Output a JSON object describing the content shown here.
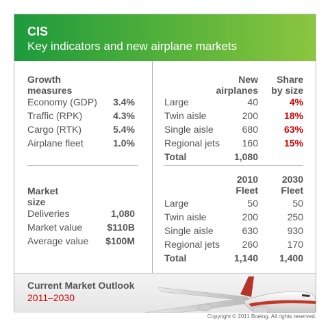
{
  "header": {
    "title": "CIS",
    "subtitle": "Key indicators and new airplane markets"
  },
  "growth": {
    "heading_line1": "Growth",
    "heading_line2": "measures",
    "rows": [
      {
        "label": "Economy (GDP)",
        "value": "3.4%"
      },
      {
        "label": "Traffic (RPK)",
        "value": "4.3%"
      },
      {
        "label": "Cargo (RTK)",
        "value": "5.4%"
      },
      {
        "label": "Airplane fleet",
        "value": "1.0%"
      }
    ]
  },
  "market": {
    "heading_line1": "Market",
    "heading_line2": "size",
    "rows": [
      {
        "label": "Deliveries",
        "value": "1,080"
      },
      {
        "label": "Market value",
        "value": "$110B"
      },
      {
        "label": "Average value",
        "value": "$100M"
      }
    ]
  },
  "new_airplanes": {
    "col1_line1": "New",
    "col1_line2": "airplanes",
    "col2_line1": "Share",
    "col2_line2": "by size",
    "rows": [
      {
        "label": "Large",
        "count": "40",
        "share": "4%"
      },
      {
        "label": "Twin aisle",
        "count": "200",
        "share": "18%"
      },
      {
        "label": "Single aisle",
        "count": "680",
        "share": "63%"
      },
      {
        "label": "Regional jets",
        "count": "160",
        "share": "15%"
      }
    ],
    "total_label": "Total",
    "total_value": "1,080"
  },
  "fleet": {
    "col1_line1": "2010",
    "col1_line2": "Fleet",
    "col2_line1": "2030",
    "col2_line2": "Fleet",
    "rows": [
      {
        "label": "Large",
        "y2010": "50",
        "y2030": "50"
      },
      {
        "label": "Twin aisle",
        "y2010": "200",
        "y2030": "250"
      },
      {
        "label": "Single aisle",
        "y2010": "630",
        "y2030": "930"
      },
      {
        "label": "Regional jets",
        "y2010": "260",
        "y2030": "170"
      }
    ],
    "total_label": "Total",
    "total_2010": "1,140",
    "total_2030": "1,400"
  },
  "footer": {
    "title": "Current Market Outlook",
    "years": "2011–2030",
    "copyright": "Copyright © 2011 Boeing. All rights reserved."
  },
  "colors": {
    "header_green": "#58b33a",
    "accent_red": "#cc0000",
    "text_gray": "#555555"
  }
}
